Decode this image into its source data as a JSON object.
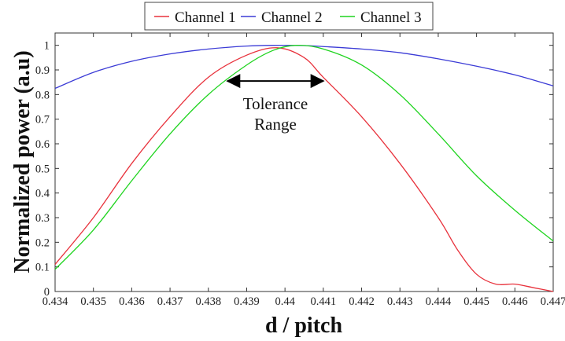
{
  "chart_data": {
    "type": "line",
    "xlabel": "d / pitch",
    "ylabel": "Normalized power (a.u)",
    "xlim": [
      0.434,
      0.447
    ],
    "ylim": [
      0,
      1.05
    ],
    "xticks": [
      "0.434",
      "0.435",
      "0.436",
      "0.437",
      "0.438",
      "0.439",
      "0.44",
      "0.441",
      "0.442",
      "0.443",
      "0.444",
      "0.445",
      "0.446",
      "0.447"
    ],
    "yticks": [
      "0",
      "0.1",
      "0.2",
      "0.3",
      "0.4",
      "0.5",
      "0.6",
      "0.7",
      "0.8",
      "0.9",
      "1"
    ],
    "grid": false,
    "legend_position": "top",
    "series": [
      {
        "name": "Channel 1",
        "color": "#e8323c",
        "points": [
          [
            0.434,
            0.11
          ],
          [
            0.435,
            0.3
          ],
          [
            0.436,
            0.52
          ],
          [
            0.437,
            0.71
          ],
          [
            0.438,
            0.87
          ],
          [
            0.439,
            0.96
          ],
          [
            0.4398,
            0.99
          ],
          [
            0.4405,
            0.95
          ],
          [
            0.441,
            0.87
          ],
          [
            0.442,
            0.71
          ],
          [
            0.443,
            0.52
          ],
          [
            0.444,
            0.3
          ],
          [
            0.4445,
            0.17
          ],
          [
            0.445,
            0.07
          ],
          [
            0.4455,
            0.03
          ],
          [
            0.446,
            0.03
          ],
          [
            0.4465,
            0.015
          ],
          [
            0.447,
            0.0
          ]
        ]
      },
      {
        "name": "Channel 2",
        "color": "#3b3bd6",
        "points": [
          [
            0.434,
            0.825
          ],
          [
            0.435,
            0.89
          ],
          [
            0.436,
            0.935
          ],
          [
            0.437,
            0.965
          ],
          [
            0.438,
            0.985
          ],
          [
            0.439,
            0.997
          ],
          [
            0.4397,
            1.0
          ],
          [
            0.4405,
            0.999
          ],
          [
            0.441,
            0.995
          ],
          [
            0.442,
            0.985
          ],
          [
            0.443,
            0.97
          ],
          [
            0.444,
            0.945
          ],
          [
            0.445,
            0.915
          ],
          [
            0.446,
            0.88
          ],
          [
            0.447,
            0.835
          ]
        ]
      },
      {
        "name": "Channel 3",
        "color": "#1fd41f",
        "points": [
          [
            0.434,
            0.09
          ],
          [
            0.435,
            0.25
          ],
          [
            0.436,
            0.45
          ],
          [
            0.437,
            0.64
          ],
          [
            0.438,
            0.8
          ],
          [
            0.439,
            0.92
          ],
          [
            0.4397,
            0.98
          ],
          [
            0.4403,
            1.0
          ],
          [
            0.441,
            0.985
          ],
          [
            0.442,
            0.92
          ],
          [
            0.443,
            0.8
          ],
          [
            0.444,
            0.64
          ],
          [
            0.445,
            0.47
          ],
          [
            0.446,
            0.33
          ],
          [
            0.447,
            0.205
          ]
        ]
      }
    ],
    "annotations": [
      {
        "text_lines": [
          "Tolerance",
          "Range"
        ],
        "arrow": {
          "x_from": 0.4385,
          "x_to": 0.441,
          "y": 0.855,
          "double_headed": true
        }
      }
    ]
  }
}
